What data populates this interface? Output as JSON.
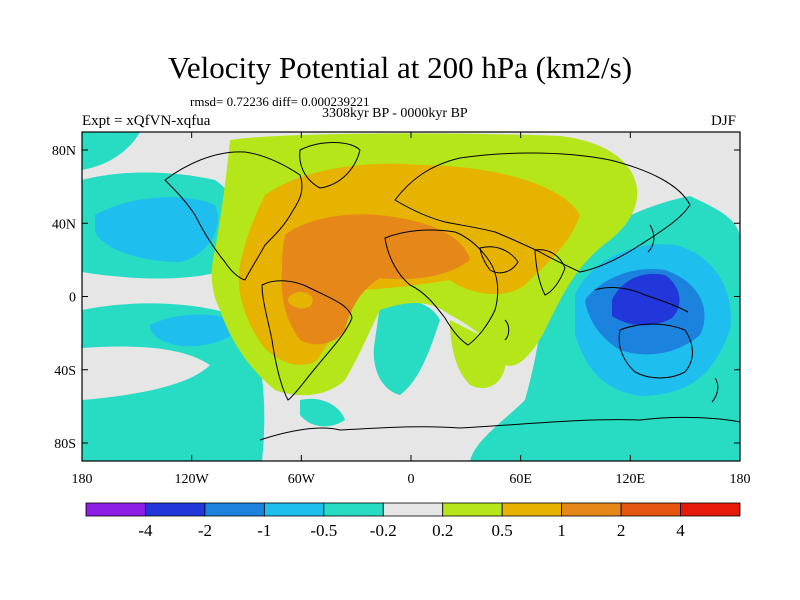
{
  "title": "Velocity Potential at 200 hPa (km2/s)",
  "stats": "rmsd= 0.72236 diff= 0.000239221",
  "period": "3308kyr BP - 0000kyr BP",
  "experiment": "Expt = xQfVN-xqfua",
  "season": "DJF",
  "latitude_labels": [
    "80N",
    "40N",
    "0",
    "40S",
    "80S"
  ],
  "longitude_labels": [
    "180",
    "120W",
    "60W",
    "0",
    "60E",
    "120E",
    "180"
  ],
  "colorbar": {
    "colors": [
      "#8c1ee6",
      "#2137d9",
      "#1b82de",
      "#1ebfee",
      "#28dcc4",
      "#e6e6e6",
      "#b4e61a",
      "#e6b400",
      "#e6871a",
      "#e6550f",
      "#e61a0a"
    ],
    "labels": [
      "-4",
      "-2",
      "-1",
      "-0.5",
      "-0.2",
      "0.2",
      "0.5",
      "1",
      "2",
      "4"
    ]
  },
  "field_colors": {
    "ocean_base": "#e6e6e6",
    "neg_weak": "#28dcc4",
    "neg_mid": "#1ebfee",
    "neg_strong": "#1b82de",
    "neg_vstrong": "#2137d9",
    "pos_weak": "#b4e61a",
    "pos_mid": "#e6b400",
    "pos_strong": "#e6871a",
    "coast": "#000000"
  }
}
